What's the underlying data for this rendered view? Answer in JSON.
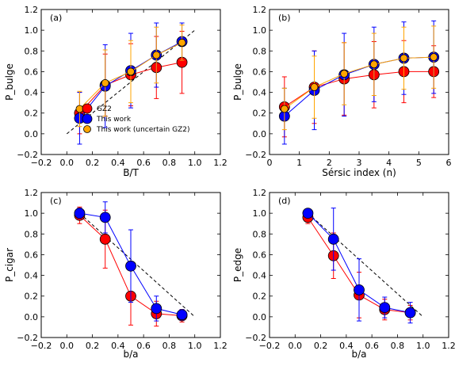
{
  "chart_data": [
    {
      "type": "scatter",
      "panel": "(a)",
      "xlabel": "B/T",
      "ylabel": "P_bulge",
      "xlim": [
        -0.2,
        1.2
      ],
      "ylim": [
        -0.2,
        1.2
      ],
      "xticks": [
        "−0.2",
        "0.0",
        "0.2",
        "0.4",
        "0.6",
        "0.8",
        "1.0",
        "1.2"
      ],
      "yticks": [
        "−0.2",
        "0.0",
        "0.2",
        "0.4",
        "0.6",
        "0.8",
        "1.0",
        "1.2"
      ],
      "diagonal": {
        "x": [
          0.0,
          1.0
        ],
        "y": [
          0.0,
          1.0
        ]
      },
      "legend": {
        "placement": "lower-right",
        "entries": [
          "GZ2",
          "This work",
          "This work (uncertain GZ2)"
        ]
      },
      "series": [
        {
          "name": "GZ2",
          "color": "#ff0000",
          "size": 6.5,
          "x": [
            0.1,
            0.3,
            0.5,
            0.7,
            0.9
          ],
          "y": [
            0.2,
            0.47,
            0.57,
            0.64,
            0.69
          ],
          "err": [
            0.2,
            0.3,
            0.3,
            0.3,
            0.3
          ]
        },
        {
          "name": "This work",
          "color": "#0000ff",
          "size": 6.5,
          "x": [
            0.1,
            0.3,
            0.5,
            0.7,
            0.9
          ],
          "y": [
            0.15,
            0.46,
            0.61,
            0.76,
            0.89
          ],
          "err": [
            0.25,
            0.4,
            0.36,
            0.31,
            0.18
          ]
        },
        {
          "name": "This work (uncertain GZ2)",
          "color": "#ffa500",
          "size": 4.5,
          "x": [
            0.1,
            0.3,
            0.5,
            0.7,
            0.9
          ],
          "y": [
            0.24,
            0.49,
            0.6,
            0.76,
            0.88
          ],
          "err": [
            0.17,
            0.32,
            0.3,
            0.27,
            0.17
          ]
        }
      ]
    },
    {
      "type": "scatter",
      "panel": "(b)",
      "xlabel": "Sérsic index (n)",
      "ylabel": "P_bulge",
      "xlim": [
        0,
        6
      ],
      "ylim": [
        -0.2,
        1.2
      ],
      "xticks": [
        "0",
        "1",
        "2",
        "3",
        "4",
        "5",
        "6"
      ],
      "yticks": [
        "−0.2",
        "0.0",
        "0.2",
        "0.4",
        "0.6",
        "0.8",
        "1.0",
        "1.2"
      ],
      "series": [
        {
          "name": "GZ2",
          "color": "#ff0000",
          "size": 6.5,
          "x": [
            0.5,
            1.5,
            2.5,
            3.5,
            4.5,
            5.5
          ],
          "y": [
            0.26,
            0.45,
            0.53,
            0.57,
            0.6,
            0.6
          ],
          "err": [
            0.29,
            0.35,
            0.35,
            0.32,
            0.3,
            0.25
          ]
        },
        {
          "name": "This work",
          "color": "#0000ff",
          "size": 6.5,
          "x": [
            0.5,
            1.5,
            2.5,
            3.5,
            4.5,
            5.5
          ],
          "y": [
            0.17,
            0.42,
            0.57,
            0.67,
            0.73,
            0.74
          ],
          "err": [
            0.27,
            0.38,
            0.4,
            0.36,
            0.35,
            0.35
          ]
        },
        {
          "name": "This work (uncertain GZ2)",
          "color": "#ffa500",
          "size": 4.5,
          "x": [
            0.5,
            1.5,
            2.5,
            3.5,
            4.5,
            5.5
          ],
          "y": [
            0.24,
            0.45,
            0.58,
            0.67,
            0.73,
            0.74
          ],
          "err": [
            0.2,
            0.3,
            0.3,
            0.3,
            0.3,
            0.3
          ]
        }
      ]
    },
    {
      "type": "scatter",
      "panel": "(c)",
      "xlabel": "b/a",
      "ylabel": "P_cigar",
      "xlim": [
        -0.2,
        1.2
      ],
      "ylim": [
        -0.2,
        1.2
      ],
      "xticks": [
        "−0.2",
        "0.0",
        "0.2",
        "0.4",
        "0.6",
        "0.8",
        "1.0",
        "1.2"
      ],
      "yticks": [
        "−0.2",
        "0.0",
        "0.2",
        "0.4",
        "0.6",
        "0.8",
        "1.0",
        "1.2"
      ],
      "diagonal": {
        "x": [
          0.1,
          1.0
        ],
        "y": [
          1.0,
          0.0
        ]
      },
      "series": [
        {
          "name": "GZ2",
          "color": "#ff0000",
          "size": 6.5,
          "x": [
            0.1,
            0.3,
            0.5,
            0.7,
            0.9
          ],
          "y": [
            0.98,
            0.75,
            0.2,
            0.03,
            0.01
          ],
          "err": [
            0.08,
            0.28,
            0.28,
            0.12,
            0.06
          ]
        },
        {
          "name": "This work",
          "color": "#0000ff",
          "size": 6.5,
          "x": [
            0.1,
            0.3,
            0.5,
            0.7,
            0.9
          ],
          "y": [
            1.0,
            0.96,
            0.49,
            0.08,
            0.02
          ],
          "err": [
            0.05,
            0.15,
            0.35,
            0.12,
            0.05
          ]
        }
      ]
    },
    {
      "type": "scatter",
      "panel": "(d)",
      "xlabel": "b/a",
      "ylabel": "P_edge",
      "xlim": [
        -0.2,
        1.2
      ],
      "ylim": [
        -0.2,
        1.2
      ],
      "xticks": [
        "−0.2",
        "0.0",
        "0.2",
        "0.4",
        "0.6",
        "0.8",
        "1.0",
        "1.2"
      ],
      "yticks": [
        "−0.2",
        "0.0",
        "0.2",
        "0.4",
        "0.6",
        "0.8",
        "1.0",
        "1.2"
      ],
      "diagonal": {
        "x": [
          0.1,
          1.0
        ],
        "y": [
          1.0,
          0.0
        ]
      },
      "series": [
        {
          "name": "GZ2",
          "color": "#ff0000",
          "size": 6.5,
          "x": [
            0.1,
            0.3,
            0.5,
            0.7,
            0.9
          ],
          "y": [
            0.96,
            0.59,
            0.21,
            0.07,
            0.04
          ],
          "err": [
            0.06,
            0.22,
            0.22,
            0.1,
            0.07
          ]
        },
        {
          "name": "This work",
          "color": "#0000ff",
          "size": 6.5,
          "x": [
            0.1,
            0.3,
            0.5,
            0.7,
            0.9
          ],
          "y": [
            1.0,
            0.75,
            0.26,
            0.09,
            0.04
          ],
          "err": [
            0.04,
            0.3,
            0.3,
            0.1,
            0.1
          ]
        }
      ]
    }
  ]
}
